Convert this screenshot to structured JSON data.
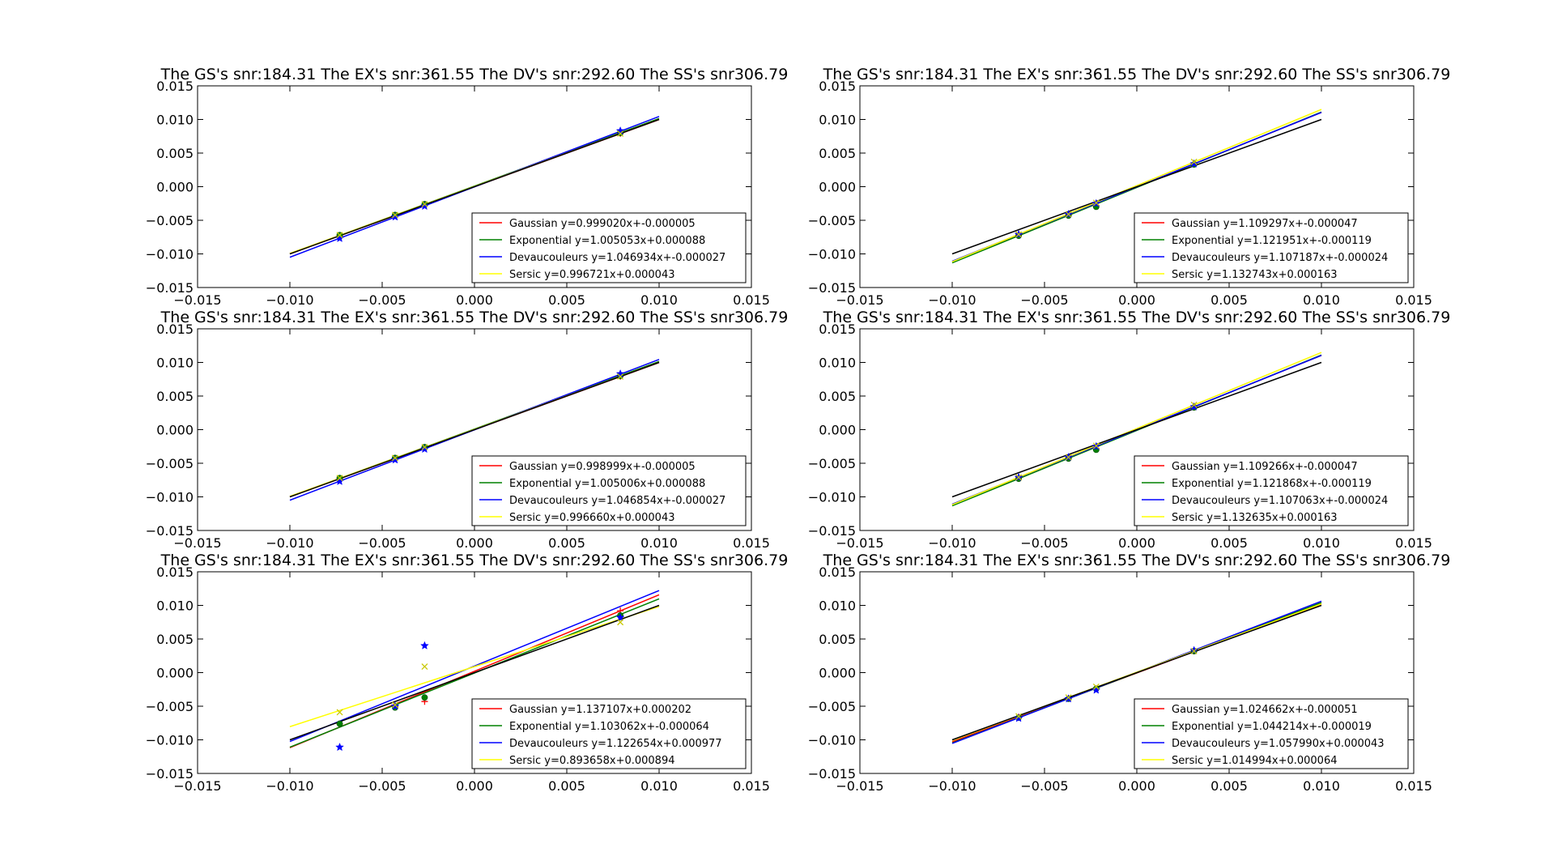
{
  "figure": {
    "background": "#ffffff"
  },
  "styles": {
    "Gaussian": {
      "color": "#ff0000",
      "marker": "plus"
    },
    "Exponential": {
      "color": "#008000",
      "marker": "dot"
    },
    "Devaucouleurs": {
      "color": "#0000ff",
      "marker": "star"
    },
    "Sersic": {
      "color": "#ffff00",
      "marker": "x"
    },
    "reference_line_color": "#000000"
  },
  "chart_data": [
    {
      "type": "line",
      "title": "The GS's snr:184.31 The EX's snr:361.55 The DV's snr:292.60 The SS's snr306.79",
      "xlim": [
        -0.015,
        0.015
      ],
      "ylim": [
        -0.015,
        0.015
      ],
      "xticks": [
        "−0.015",
        "−0.010",
        "−0.005",
        "0.000",
        "0.005",
        "0.010",
        "0.015"
      ],
      "yticks": [
        "−0.015",
        "−0.010",
        "−0.005",
        "0.000",
        "0.005",
        "0.010",
        "0.015"
      ],
      "reference_line": {
        "x": [
          -0.01,
          0.01
        ],
        "y": [
          -0.01,
          0.01
        ]
      },
      "legend_position": "lower-right",
      "series": [
        {
          "name": "Gaussian",
          "label": "Gaussian y=0.999020x+-0.000005",
          "slope": 0.99902,
          "intercept": -5e-06,
          "x": [
            -0.0073,
            -0.0043,
            -0.0027,
            0.0079
          ],
          "y": [
            -0.0073,
            -0.0043,
            -0.0027,
            0.0079
          ]
        },
        {
          "name": "Exponential",
          "label": "Exponential y=1.005053x+0.000088",
          "slope": 1.005053,
          "intercept": 8.8e-05,
          "x": [
            -0.0073,
            -0.0043,
            -0.0027,
            0.0079
          ],
          "y": [
            -0.0072,
            -0.0042,
            -0.0026,
            0.008
          ]
        },
        {
          "name": "Devaucouleurs",
          "label": "Devaucouleurs y=1.046934x+-0.000027",
          "slope": 1.046934,
          "intercept": -2.7e-05,
          "x": [
            -0.0073,
            -0.0043,
            -0.0027,
            0.0079
          ],
          "y": [
            -0.0077,
            -0.0045,
            -0.0029,
            0.0083
          ]
        },
        {
          "name": "Sersic",
          "label": "Sersic y=0.996721x+0.000043",
          "slope": 0.996721,
          "intercept": 4.3e-05,
          "x": [
            -0.0073,
            -0.0043,
            -0.0027,
            0.0079
          ],
          "y": [
            -0.0072,
            -0.0042,
            -0.0026,
            0.0079
          ]
        }
      ]
    },
    {
      "type": "line",
      "title": "The GS's snr:184.31 The EX's snr:361.55 The DV's snr:292.60 The SS's snr306.79",
      "xlim": [
        -0.015,
        0.015
      ],
      "ylim": [
        -0.015,
        0.015
      ],
      "xticks": [
        "−0.015",
        "−0.010",
        "−0.005",
        "0.000",
        "0.005",
        "0.010",
        "0.015"
      ],
      "yticks": [
        "−0.015",
        "−0.010",
        "−0.005",
        "0.000",
        "0.005",
        "0.010",
        "0.015"
      ],
      "reference_line": {
        "x": [
          -0.01,
          0.01
        ],
        "y": [
          -0.01,
          0.01
        ]
      },
      "legend_position": "lower-right",
      "series": [
        {
          "name": "Gaussian",
          "label": "Gaussian y=1.109297x+-0.000047",
          "slope": 1.109297,
          "intercept": -4.7e-05,
          "x": [
            -0.0064,
            -0.0037,
            -0.0022,
            0.0031
          ],
          "y": [
            -0.0072,
            -0.0042,
            -0.0028,
            0.0034
          ]
        },
        {
          "name": "Exponential",
          "label": "Exponential y=1.121951x+-0.000119",
          "slope": 1.121951,
          "intercept": -0.000119,
          "x": [
            -0.0064,
            -0.0037,
            -0.0022,
            0.0031
          ],
          "y": [
            -0.0073,
            -0.0043,
            -0.003,
            0.0033
          ]
        },
        {
          "name": "Devaucouleurs",
          "label": "Devaucouleurs y=1.107187x+-0.000024",
          "slope": 1.107187,
          "intercept": -2.4e-05,
          "x": [
            -0.0064,
            -0.0037,
            -0.0022,
            0.0031
          ],
          "y": [
            -0.0071,
            -0.0041,
            -0.0025,
            0.0034
          ]
        },
        {
          "name": "Sersic",
          "label": "Sersic y=1.132743x+0.000163",
          "slope": 1.132743,
          "intercept": 0.000163,
          "x": [
            -0.0064,
            -0.0037,
            -0.0022,
            0.0031
          ],
          "y": [
            -0.0071,
            -0.0041,
            -0.0024,
            0.0037
          ]
        }
      ]
    },
    {
      "type": "line",
      "title": "The GS's snr:184.31 The EX's snr:361.55 The DV's snr:292.60 The SS's snr306.79",
      "xlim": [
        -0.015,
        0.015
      ],
      "ylim": [
        -0.015,
        0.015
      ],
      "xticks": [
        "−0.015",
        "−0.010",
        "−0.005",
        "0.000",
        "0.005",
        "0.010",
        "0.015"
      ],
      "yticks": [
        "−0.015",
        "−0.010",
        "−0.005",
        "0.000",
        "0.005",
        "0.010",
        "0.015"
      ],
      "reference_line": {
        "x": [
          -0.01,
          0.01
        ],
        "y": [
          -0.01,
          0.01
        ]
      },
      "legend_position": "lower-right",
      "series": [
        {
          "name": "Gaussian",
          "label": "Gaussian y=0.998999x+-0.000005",
          "slope": 0.998999,
          "intercept": -5e-06,
          "x": [
            -0.0073,
            -0.0043,
            -0.0027,
            0.0079
          ],
          "y": [
            -0.0073,
            -0.0043,
            -0.0027,
            0.0079
          ]
        },
        {
          "name": "Exponential",
          "label": "Exponential y=1.005006x+0.000088",
          "slope": 1.005006,
          "intercept": 8.8e-05,
          "x": [
            -0.0073,
            -0.0043,
            -0.0027,
            0.0079
          ],
          "y": [
            -0.0072,
            -0.0042,
            -0.0026,
            0.008
          ]
        },
        {
          "name": "Devaucouleurs",
          "label": "Devaucouleurs y=1.046854x+-0.000027",
          "slope": 1.046854,
          "intercept": -2.7e-05,
          "x": [
            -0.0073,
            -0.0043,
            -0.0027,
            0.0079
          ],
          "y": [
            -0.0077,
            -0.0045,
            -0.0029,
            0.0083
          ]
        },
        {
          "name": "Sersic",
          "label": "Sersic y=0.996660x+0.000043",
          "slope": 0.99666,
          "intercept": 4.3e-05,
          "x": [
            -0.0073,
            -0.0043,
            -0.0027,
            0.0079
          ],
          "y": [
            -0.0072,
            -0.0042,
            -0.0026,
            0.0079
          ]
        }
      ]
    },
    {
      "type": "line",
      "title": "The GS's snr:184.31 The EX's snr:361.55 The DV's snr:292.60 The SS's snr306.79",
      "xlim": [
        -0.015,
        0.015
      ],
      "ylim": [
        -0.015,
        0.015
      ],
      "xticks": [
        "−0.015",
        "−0.010",
        "−0.005",
        "0.000",
        "0.005",
        "0.010",
        "0.015"
      ],
      "yticks": [
        "−0.015",
        "−0.010",
        "−0.005",
        "0.000",
        "0.005",
        "0.010",
        "0.015"
      ],
      "reference_line": {
        "x": [
          -0.01,
          0.01
        ],
        "y": [
          -0.01,
          0.01
        ]
      },
      "legend_position": "lower-right",
      "series": [
        {
          "name": "Gaussian",
          "label": "Gaussian y=1.109266x+-0.000047",
          "slope": 1.109266,
          "intercept": -4.7e-05,
          "x": [
            -0.0064,
            -0.0037,
            -0.0022,
            0.0031
          ],
          "y": [
            -0.0072,
            -0.0042,
            -0.0028,
            0.0034
          ]
        },
        {
          "name": "Exponential",
          "label": "Exponential y=1.121868x+-0.000119",
          "slope": 1.121868,
          "intercept": -0.000119,
          "x": [
            -0.0064,
            -0.0037,
            -0.0022,
            0.0031
          ],
          "y": [
            -0.0073,
            -0.0043,
            -0.003,
            0.0033
          ]
        },
        {
          "name": "Devaucouleurs",
          "label": "Devaucouleurs y=1.107063x+-0.000024",
          "slope": 1.107063,
          "intercept": -2.4e-05,
          "x": [
            -0.0064,
            -0.0037,
            -0.0022,
            0.0031
          ],
          "y": [
            -0.0071,
            -0.0041,
            -0.0025,
            0.0034
          ]
        },
        {
          "name": "Sersic",
          "label": "Sersic y=1.132635x+0.000163",
          "slope": 1.132635,
          "intercept": 0.000163,
          "x": [
            -0.0064,
            -0.0037,
            -0.0022,
            0.0031
          ],
          "y": [
            -0.0071,
            -0.0041,
            -0.0024,
            0.0037
          ]
        }
      ]
    },
    {
      "type": "line",
      "title": "The GS's snr:184.31 The EX's snr:361.55 The DV's snr:292.60 The SS's snr306.79",
      "xlim": [
        -0.015,
        0.015
      ],
      "ylim": [
        -0.015,
        0.015
      ],
      "xticks": [
        "−0.015",
        "−0.010",
        "−0.005",
        "0.000",
        "0.005",
        "0.010",
        "0.015"
      ],
      "yticks": [
        "−0.015",
        "−0.010",
        "−0.005",
        "0.000",
        "0.005",
        "0.010",
        "0.015"
      ],
      "reference_line": {
        "x": [
          -0.01,
          0.01
        ],
        "y": [
          -0.01,
          0.01
        ]
      },
      "legend_position": "lower-right",
      "series": [
        {
          "name": "Gaussian",
          "label": "Gaussian y=1.137107x+0.000202",
          "slope": 1.137107,
          "intercept": 0.000202,
          "x": [
            -0.0073,
            -0.0043,
            -0.0027,
            0.0079
          ],
          "y": [
            -0.0076,
            -0.005,
            -0.0043,
            0.0092
          ]
        },
        {
          "name": "Exponential",
          "label": "Exponential y=1.103062x+-0.000064",
          "slope": 1.103062,
          "intercept": -6.4e-05,
          "x": [
            -0.0073,
            -0.0043,
            -0.0027,
            0.0079
          ],
          "y": [
            -0.0076,
            -0.0052,
            -0.0037,
            0.0085
          ]
        },
        {
          "name": "Devaucouleurs",
          "label": "Devaucouleurs y=1.122654x+0.000977",
          "slope": 1.122654,
          "intercept": 0.000977,
          "x": [
            -0.0073,
            -0.0043,
            -0.0027,
            0.0079
          ],
          "y": [
            -0.0111,
            -0.005,
            0.004,
            0.0082
          ]
        },
        {
          "name": "Sersic",
          "label": "Sersic y=0.893658x+0.000894",
          "slope": 0.893658,
          "intercept": 0.000894,
          "x": [
            -0.0073,
            -0.0043,
            -0.0027,
            0.0079
          ],
          "y": [
            -0.0059,
            -0.0048,
            0.0009,
            0.0075
          ]
        }
      ]
    },
    {
      "type": "line",
      "title": "The GS's snr:184.31 The EX's snr:361.55 The DV's snr:292.60 The SS's snr306.79",
      "xlim": [
        -0.015,
        0.015
      ],
      "ylim": [
        -0.015,
        0.015
      ],
      "xticks": [
        "−0.015",
        "−0.010",
        "−0.005",
        "0.000",
        "0.005",
        "0.010",
        "0.015"
      ],
      "yticks": [
        "−0.015",
        "−0.010",
        "−0.005",
        "0.000",
        "0.005",
        "0.010",
        "0.015"
      ],
      "reference_line": {
        "x": [
          -0.01,
          0.01
        ],
        "y": [
          -0.01,
          0.01
        ]
      },
      "legend_position": "lower-right",
      "series": [
        {
          "name": "Gaussian",
          "label": "Gaussian y=1.024662x+-0.000051",
          "slope": 1.024662,
          "intercept": -5.1e-05,
          "x": [
            -0.0064,
            -0.0037,
            -0.0022,
            0.0031
          ],
          "y": [
            -0.0066,
            -0.0038,
            -0.0024,
            0.0032
          ]
        },
        {
          "name": "Exponential",
          "label": "Exponential y=1.044214x+-0.000019",
          "slope": 1.044214,
          "intercept": -1.9e-05,
          "x": [
            -0.0064,
            -0.0037,
            -0.0022,
            0.0031
          ],
          "y": [
            -0.0067,
            -0.0039,
            -0.0024,
            0.0032
          ]
        },
        {
          "name": "Devaucouleurs",
          "label": "Devaucouleurs y=1.057990x+0.000043",
          "slope": 1.05799,
          "intercept": 4.3e-05,
          "x": [
            -0.0064,
            -0.0037,
            -0.0022,
            0.0031
          ],
          "y": [
            -0.0068,
            -0.0039,
            -0.0026,
            0.0033
          ]
        },
        {
          "name": "Sersic",
          "label": "Sersic y=1.014994x+0.000064",
          "slope": 1.014994,
          "intercept": 6.4e-05,
          "x": [
            -0.0064,
            -0.0037,
            -0.0022,
            0.0031
          ],
          "y": [
            -0.0065,
            -0.0037,
            -0.0021,
            0.0032
          ]
        }
      ]
    }
  ]
}
